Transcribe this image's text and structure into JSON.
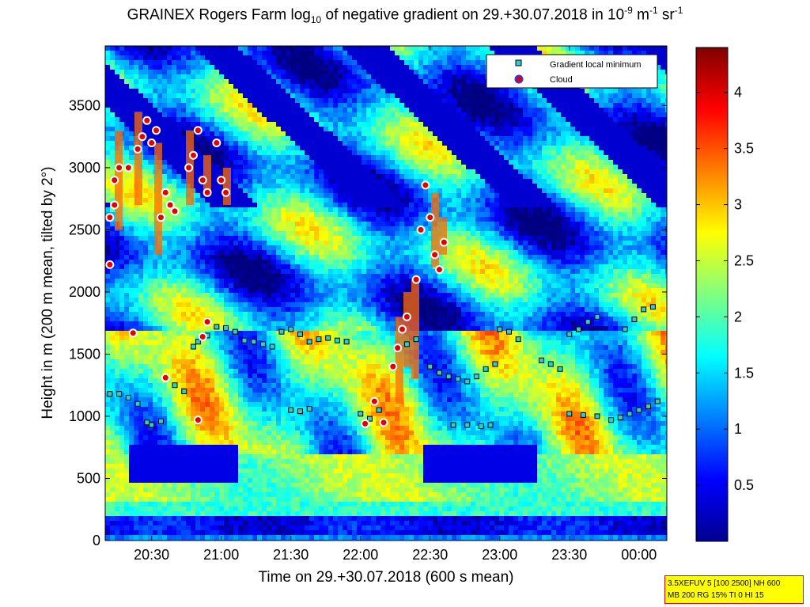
{
  "title": {
    "prefix": "GRAINEX Rogers Farm log",
    "sub": "10",
    "middle": " of negative gradient on 29.+30.07.2018 in 10",
    "sup1": "-9",
    "unit1": " m",
    "sup2": "-1",
    "unit2": " sr",
    "sup3": "-1"
  },
  "params_box": {
    "line1": "3.5XEFUV 5 [100 2500] NH 600",
    "line2": "MB 200 RG 15% TI 0 HI 15"
  },
  "colors": {
    "border": "#e00000",
    "fill": "#ffff00",
    "cloud_marker": "#e00000",
    "cloud_marker_edge": "#0000cc",
    "minimum_marker": "#33cccc"
  },
  "chart_data": {
    "type": "heatmap",
    "title": "GRAINEX Rogers Farm log10 of negative gradient on 29.+30.07.2018 in 10^-9 m^-1 sr^-1",
    "xlabel": "Time on 29.+30.07.2018 (600 s mean)",
    "ylabel": "Height in m (200 m mean, tilted by 2°)",
    "xlim": [
      "20:10",
      "00:12"
    ],
    "ylim": [
      0,
      3980
    ],
    "x_ticks": [
      "20:30",
      "21:00",
      "21:30",
      "22:00",
      "22:30",
      "23:00",
      "23:30",
      "00:00"
    ],
    "x_tick_hours": [
      20.5,
      21.0,
      21.5,
      22.0,
      22.5,
      23.0,
      23.5,
      24.0
    ],
    "y_ticks": [
      0,
      500,
      1000,
      1500,
      2000,
      2500,
      3000,
      3500
    ],
    "colorbar": {
      "colormap": "jet",
      "range": [
        0,
        4.4
      ],
      "ticks": [
        0.5,
        1,
        1.5,
        2,
        2.5,
        3,
        3.5,
        4
      ],
      "tick_labels": [
        "0.5",
        "1",
        "1.5",
        "2",
        "2.5",
        "3",
        "3.5",
        "4"
      ]
    },
    "legend": {
      "position": "top-right",
      "entries": [
        "Gradient local minimum",
        "Cloud"
      ]
    },
    "series": [
      {
        "name": "Gradient local minimum",
        "marker": "square",
        "points": [
          [
            "20:12",
            1180
          ],
          [
            "20:16",
            1180
          ],
          [
            "20:20",
            1150
          ],
          [
            "20:24",
            1100
          ],
          [
            "20:28",
            950
          ],
          [
            "20:30",
            930
          ],
          [
            "20:34",
            960
          ],
          [
            "20:40",
            1250
          ],
          [
            "20:44",
            1200
          ],
          [
            "20:48",
            1560
          ],
          [
            "20:50",
            1600
          ],
          [
            "20:54",
            1650
          ],
          [
            "20:58",
            1720
          ],
          [
            "21:02",
            1710
          ],
          [
            "21:06",
            1680
          ],
          [
            "21:10",
            1610
          ],
          [
            "21:14",
            1600
          ],
          [
            "21:18",
            1580
          ],
          [
            "21:22",
            1560
          ],
          [
            "21:26",
            1680
          ],
          [
            "21:30",
            1700
          ],
          [
            "21:34",
            1660
          ],
          [
            "21:38",
            1600
          ],
          [
            "21:42",
            1620
          ],
          [
            "21:46",
            1630
          ],
          [
            "21:50",
            1610
          ],
          [
            "21:54",
            1600
          ],
          [
            "21:30",
            1050
          ],
          [
            "21:34",
            1040
          ],
          [
            "21:38",
            1060
          ],
          [
            "22:00",
            1020
          ],
          [
            "22:04",
            980
          ],
          [
            "22:08",
            1050
          ],
          [
            "22:20",
            1580
          ],
          [
            "22:24",
            1620
          ],
          [
            "22:30",
            1400
          ],
          [
            "22:34",
            1350
          ],
          [
            "22:38",
            1320
          ],
          [
            "22:42",
            1300
          ],
          [
            "22:46",
            1280
          ],
          [
            "22:50",
            1320
          ],
          [
            "22:54",
            1380
          ],
          [
            "22:58",
            1420
          ],
          [
            "22:40",
            930
          ],
          [
            "22:46",
            930
          ],
          [
            "22:52",
            920
          ],
          [
            "22:56",
            930
          ],
          [
            "23:00",
            1700
          ],
          [
            "23:04",
            1680
          ],
          [
            "23:08",
            1620
          ],
          [
            "23:18",
            1450
          ],
          [
            "23:22",
            1420
          ],
          [
            "23:26",
            1380
          ],
          [
            "23:30",
            1660
          ],
          [
            "23:34",
            1700
          ],
          [
            "23:38",
            1760
          ],
          [
            "23:42",
            1800
          ],
          [
            "23:30",
            1020
          ],
          [
            "23:36",
            1010
          ],
          [
            "23:42",
            1000
          ],
          [
            "23:48",
            970
          ],
          [
            "23:52",
            990
          ],
          [
            "23:56",
            1020
          ],
          [
            "00:00",
            1050
          ],
          [
            "00:04",
            1080
          ],
          [
            "00:08",
            1120
          ],
          [
            "23:54",
            1700
          ],
          [
            "23:58",
            1780
          ],
          [
            "00:02",
            1860
          ],
          [
            "00:06",
            1880
          ]
        ]
      },
      {
        "name": "Cloud",
        "marker": "circle",
        "points": [
          [
            "20:12",
            2220
          ],
          [
            "20:12",
            2600
          ],
          [
            "20:14",
            2700
          ],
          [
            "20:14",
            2900
          ],
          [
            "20:16",
            3000
          ],
          [
            "20:20",
            3000
          ],
          [
            "20:24",
            3150
          ],
          [
            "20:26",
            3250
          ],
          [
            "20:28",
            3380
          ],
          [
            "20:30",
            3200
          ],
          [
            "20:32",
            3300
          ],
          [
            "20:34",
            2600
          ],
          [
            "20:36",
            2800
          ],
          [
            "20:38",
            2700
          ],
          [
            "20:40",
            2650
          ],
          [
            "20:46",
            3000
          ],
          [
            "20:48",
            3100
          ],
          [
            "20:50",
            3300
          ],
          [
            "20:52",
            2900
          ],
          [
            "20:54",
            2800
          ],
          [
            "20:58",
            3200
          ],
          [
            "21:00",
            2900
          ],
          [
            "21:02",
            2800
          ],
          [
            "20:22",
            1670
          ],
          [
            "20:50",
            970
          ],
          [
            "20:52",
            1640
          ],
          [
            "20:54",
            1760
          ],
          [
            "20:36",
            1310
          ],
          [
            "22:02",
            940
          ],
          [
            "22:06",
            1120
          ],
          [
            "22:10",
            950
          ],
          [
            "22:14",
            1400
          ],
          [
            "22:16",
            1550
          ],
          [
            "22:18",
            1700
          ],
          [
            "22:20",
            1800
          ],
          [
            "22:24",
            2100
          ],
          [
            "22:26",
            2500
          ],
          [
            "22:28",
            2860
          ],
          [
            "22:30",
            2600
          ],
          [
            "22:32",
            2300
          ],
          [
            "22:34",
            2180
          ],
          [
            "22:36",
            2400
          ]
        ]
      }
    ]
  }
}
